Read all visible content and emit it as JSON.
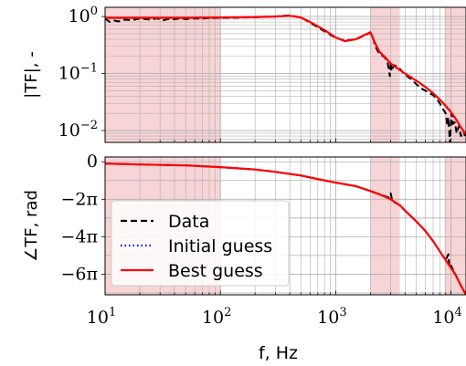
{
  "chart_data": [
    {
      "type": "line",
      "ylabel": "|TF|, -",
      "xlabel": "",
      "xscale": "log",
      "yscale": "log",
      "xlim": [
        10,
        13500
      ],
      "ylim": [
        0.0062,
        1.45
      ],
      "grid": true,
      "yticks": [
        {
          "value": 1,
          "base": "10",
          "exp": "0"
        },
        {
          "value": 0.1,
          "base": "10",
          "exp": "−1"
        },
        {
          "value": 0.01,
          "base": "10",
          "exp": "−2"
        }
      ],
      "shaded_bands": [
        [
          10,
          100
        ],
        [
          2000,
          3600
        ],
        [
          8800,
          13500
        ]
      ],
      "shade_color": "#f7d4d6",
      "series": [
        {
          "name": "Data",
          "color": "#000000",
          "style": "dashed",
          "x": [
            10,
            11,
            12,
            13,
            15,
            17,
            20,
            22,
            25,
            28,
            32,
            36,
            40,
            45,
            50,
            60,
            70,
            80,
            100,
            150,
            200,
            300,
            400,
            500,
            600,
            800,
            1000,
            1200,
            1500,
            1800,
            2000,
            2100,
            2200,
            2400,
            2600,
            2800,
            2950,
            3000,
            3050,
            3200,
            3400,
            3600,
            4000,
            4500,
            5000,
            5500,
            6000,
            6500,
            7000,
            7500,
            8000,
            8500,
            9000,
            9300,
            9500,
            9800,
            10100,
            10400,
            10800,
            11200,
            11700,
            12200,
            12800,
            13500
          ],
          "y": [
            0.92,
            0.8,
            0.85,
            0.82,
            0.88,
            0.86,
            0.92,
            0.9,
            0.88,
            0.93,
            0.86,
            0.91,
            0.89,
            0.93,
            0.9,
            0.93,
            0.92,
            0.94,
            0.95,
            0.96,
            0.97,
            1.0,
            1.05,
            0.96,
            0.78,
            0.55,
            0.42,
            0.38,
            0.4,
            0.47,
            0.52,
            0.44,
            0.3,
            0.22,
            0.2,
            0.17,
            0.09,
            0.16,
            0.11,
            0.14,
            0.135,
            0.12,
            0.095,
            0.08,
            0.065,
            0.055,
            0.05,
            0.045,
            0.042,
            0.036,
            0.03,
            0.024,
            0.02,
            0.012,
            0.017,
            0.006,
            0.02,
            0.013,
            0.014,
            0.009,
            0.012,
            0.008,
            0.01,
            0.007
          ]
        },
        {
          "name": "Initial guess",
          "color": "#0000ff",
          "style": "dotted",
          "x": [
            10,
            20,
            50,
            100,
            150,
            200,
            300,
            400,
            500,
            600,
            800,
            1000,
            1200,
            1500,
            1800,
            2000,
            2200,
            2400,
            2700,
            3000,
            3500,
            4000,
            5000,
            6000,
            7000,
            8000,
            9000,
            10000,
            11000,
            12000,
            13500
          ],
          "y": [
            0.95,
            0.95,
            0.95,
            0.96,
            0.97,
            0.98,
            1.0,
            1.03,
            0.96,
            0.8,
            0.58,
            0.43,
            0.37,
            0.4,
            0.48,
            0.53,
            0.34,
            0.24,
            0.19,
            0.15,
            0.12,
            0.1,
            0.075,
            0.058,
            0.045,
            0.035,
            0.027,
            0.021,
            0.016,
            0.012,
            0.0085
          ]
        },
        {
          "name": "Best guess",
          "color": "#ff0000",
          "style": "solid",
          "x": [
            10,
            20,
            50,
            100,
            150,
            200,
            300,
            400,
            500,
            600,
            800,
            1000,
            1200,
            1500,
            1800,
            2000,
            2200,
            2400,
            2700,
            3000,
            3500,
            4000,
            5000,
            6000,
            7000,
            8000,
            9000,
            10000,
            11000,
            12000,
            13500
          ],
          "y": [
            0.95,
            0.95,
            0.95,
            0.96,
            0.97,
            0.98,
            1.0,
            1.03,
            0.96,
            0.8,
            0.58,
            0.43,
            0.37,
            0.4,
            0.48,
            0.53,
            0.34,
            0.24,
            0.19,
            0.15,
            0.12,
            0.1,
            0.075,
            0.058,
            0.045,
            0.035,
            0.027,
            0.021,
            0.016,
            0.012,
            0.0085
          ]
        }
      ]
    },
    {
      "type": "line",
      "ylabel": "∠TF, rad",
      "xlabel": "f, Hz",
      "xscale": "log",
      "yscale": "linear",
      "xlim": [
        10,
        13500
      ],
      "ylim": [
        -22.3,
        0.8
      ],
      "grid": true,
      "xticks": [
        {
          "value": 10,
          "base": "10",
          "exp": "1"
        },
        {
          "value": 100,
          "base": "10",
          "exp": "2"
        },
        {
          "value": 1000,
          "base": "10",
          "exp": "3"
        },
        {
          "value": 10000,
          "base": "10",
          "exp": "4"
        }
      ],
      "yticks": [
        {
          "value": 0,
          "label": "0"
        },
        {
          "value": -6.2832,
          "label": "−2π"
        },
        {
          "value": -12.5664,
          "label": "−4π"
        },
        {
          "value": -18.8496,
          "label": "−6π"
        }
      ],
      "shaded_bands": [
        [
          10,
          100
        ],
        [
          2000,
          3600
        ],
        [
          8800,
          13500
        ]
      ],
      "shade_color": "#f7d4d6",
      "series": [
        {
          "name": "Data",
          "color": "#000000",
          "style": "dashed",
          "x": [
            10,
            20,
            50,
            100,
            200,
            300,
            500,
            700,
            1000,
            1500,
            2000,
            2500,
            2900,
            3000,
            3100,
            3300,
            3600,
            4000,
            5000,
            6000,
            7000,
            8000,
            9000,
            9500,
            9700,
            10000,
            11000,
            12000,
            13500
          ],
          "y": [
            -0.3,
            -0.45,
            -0.6,
            -0.9,
            -1.3,
            -1.7,
            -2.3,
            -2.9,
            -3.5,
            -4.1,
            -4.9,
            -5.6,
            -6.0,
            -5.3,
            -6.6,
            -6.9,
            -7.3,
            -8.2,
            -10.0,
            -11.6,
            -13.3,
            -15.0,
            -16.5,
            -15.5,
            -17.8,
            -17.4,
            -19.0,
            -20.5,
            -22.3
          ]
        },
        {
          "name": "Initial guess",
          "color": "#0000ff",
          "style": "dotted",
          "x": [
            10,
            20,
            50,
            100,
            200,
            300,
            500,
            700,
            1000,
            1500,
            2000,
            2500,
            3000,
            3600,
            4000,
            5000,
            6000,
            7000,
            8000,
            9000,
            10000,
            11000,
            12000,
            13500
          ],
          "y": [
            -0.3,
            -0.45,
            -0.6,
            -0.9,
            -1.3,
            -1.7,
            -2.3,
            -2.9,
            -3.5,
            -4.1,
            -4.9,
            -5.6,
            -6.3,
            -7.3,
            -8.2,
            -10.0,
            -11.6,
            -13.3,
            -15.0,
            -16.5,
            -17.8,
            -19.0,
            -20.5,
            -22.3
          ]
        },
        {
          "name": "Best guess",
          "color": "#ff0000",
          "style": "solid",
          "x": [
            10,
            20,
            50,
            100,
            200,
            300,
            500,
            700,
            1000,
            1500,
            2000,
            2500,
            3000,
            3600,
            4000,
            5000,
            6000,
            7000,
            8000,
            9000,
            10000,
            11000,
            12000,
            13500
          ],
          "y": [
            -0.3,
            -0.45,
            -0.6,
            -0.9,
            -1.3,
            -1.7,
            -2.3,
            -2.9,
            -3.5,
            -4.1,
            -4.9,
            -5.6,
            -6.3,
            -7.3,
            -8.2,
            -10.0,
            -11.6,
            -13.3,
            -15.0,
            -16.5,
            -17.8,
            -19.0,
            -20.5,
            -22.3
          ]
        }
      ]
    }
  ],
  "legend": {
    "placement": "bottom-left of lower panel",
    "entries": [
      "Data",
      "Initial guess",
      "Best guess"
    ]
  }
}
